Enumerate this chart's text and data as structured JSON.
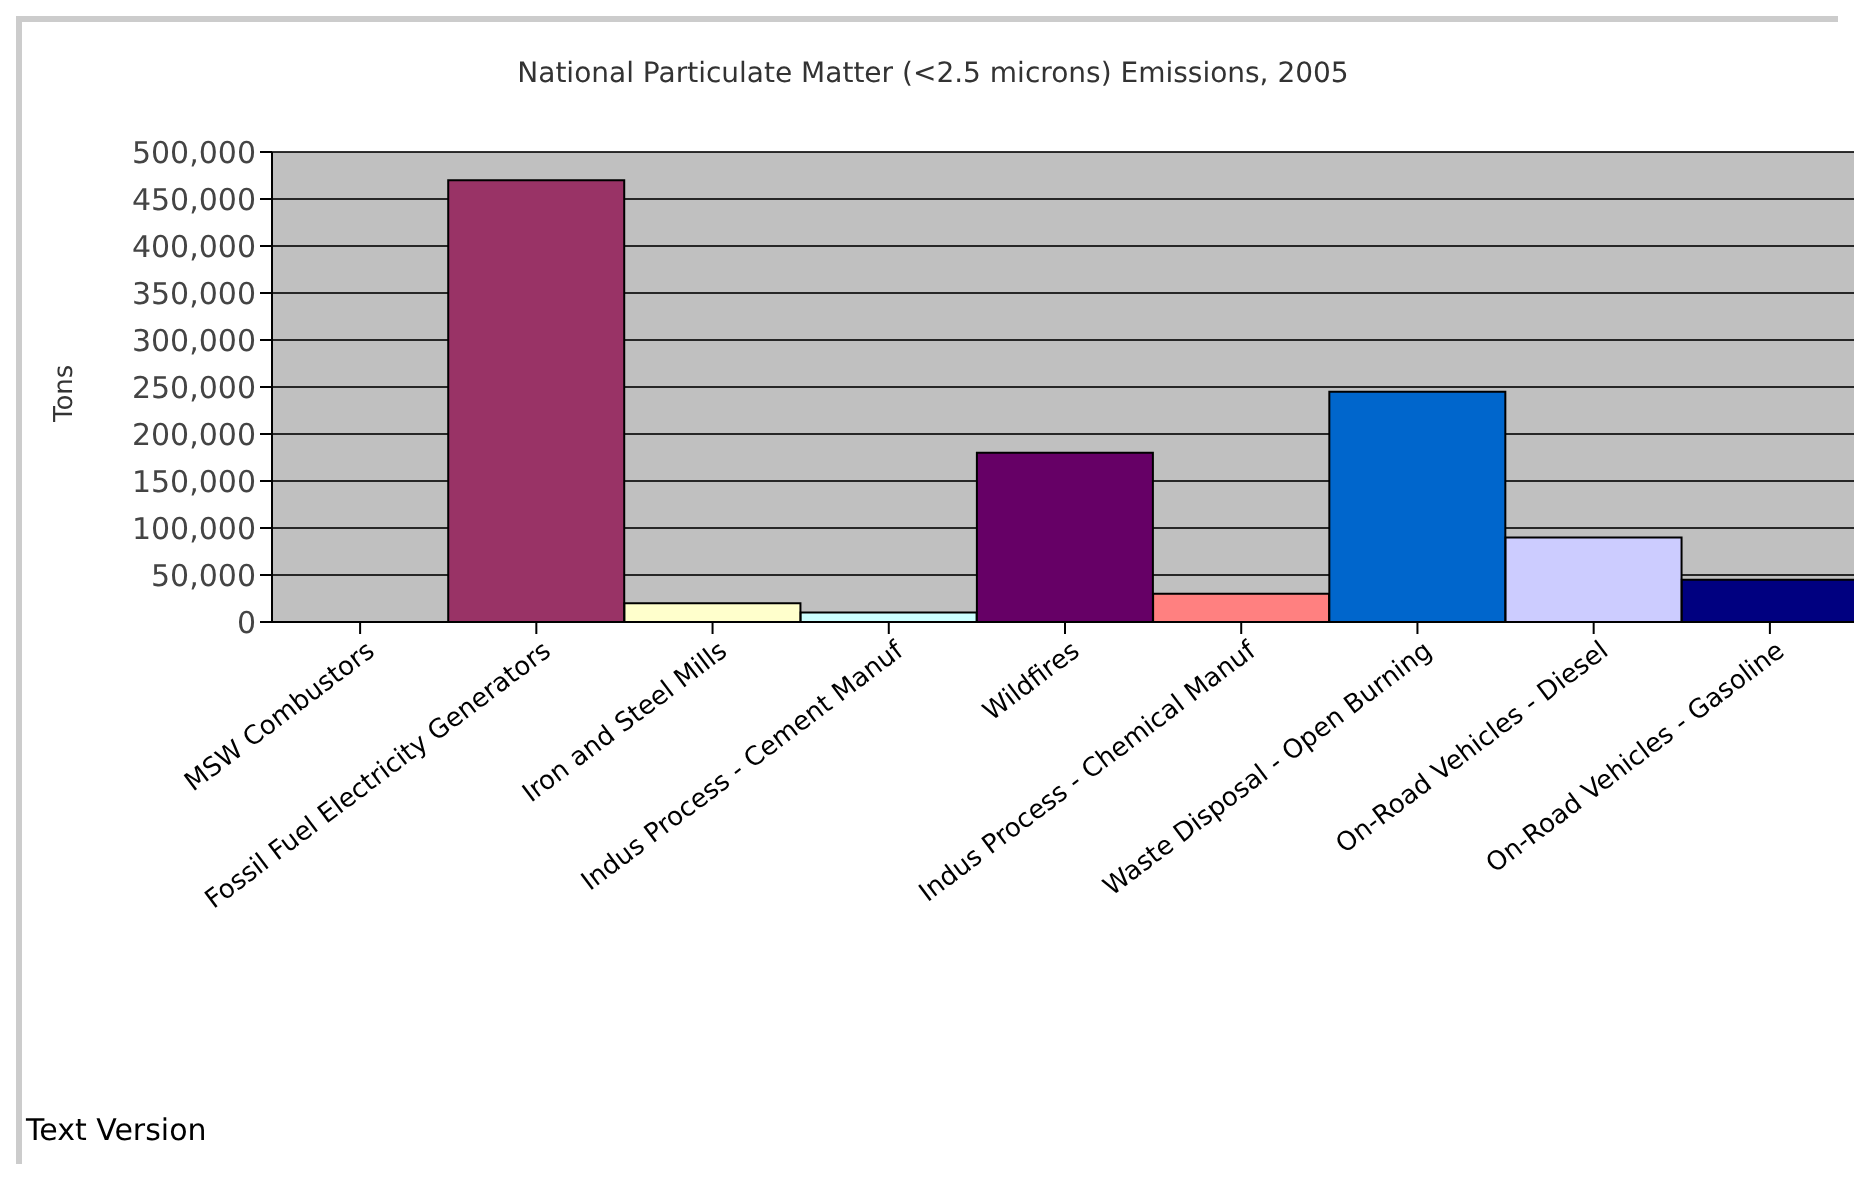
{
  "chart_data": {
    "type": "bar",
    "title": "National Particulate Matter (<2.5 microns) Emissions, 2005",
    "ylabel": "Tons",
    "categories": [
      "MSW Combustors",
      "Fossil Fuel Electricity Generators",
      "Iron and Steel Mills",
      "Indus Process - Cement Manuf",
      "Wildfires",
      "Indus Process - Chemical Manuf",
      "Waste Disposal - Open Burning",
      "On-Road Vehicles - Diesel",
      "On-Road Vehicles - Gasoline"
    ],
    "values": [
      0,
      470000,
      20000,
      10000,
      180000,
      30000,
      245000,
      90000,
      45000
    ],
    "colors": [
      "#993366",
      "#993366",
      "#ffffcc",
      "#ccffff",
      "#660066",
      "#ff8080",
      "#0066cc",
      "#ccccff",
      "#000080"
    ],
    "ylim": [
      0,
      500000
    ],
    "yticks": [
      {
        "value": 0,
        "label": "0"
      },
      {
        "value": 50000,
        "label": "50,000"
      },
      {
        "value": 100000,
        "label": "100,000"
      },
      {
        "value": 150000,
        "label": "150,000"
      },
      {
        "value": 200000,
        "label": "200,000"
      },
      {
        "value": 250000,
        "label": "250,000"
      },
      {
        "value": 300000,
        "label": "300,000"
      },
      {
        "value": 350000,
        "label": "350,000"
      },
      {
        "value": 400000,
        "label": "400,000"
      },
      {
        "value": 450000,
        "label": "450,000"
      },
      {
        "value": 500000,
        "label": "500,000"
      }
    ],
    "grid": "y",
    "annotations": [
      "Text Version"
    ]
  }
}
